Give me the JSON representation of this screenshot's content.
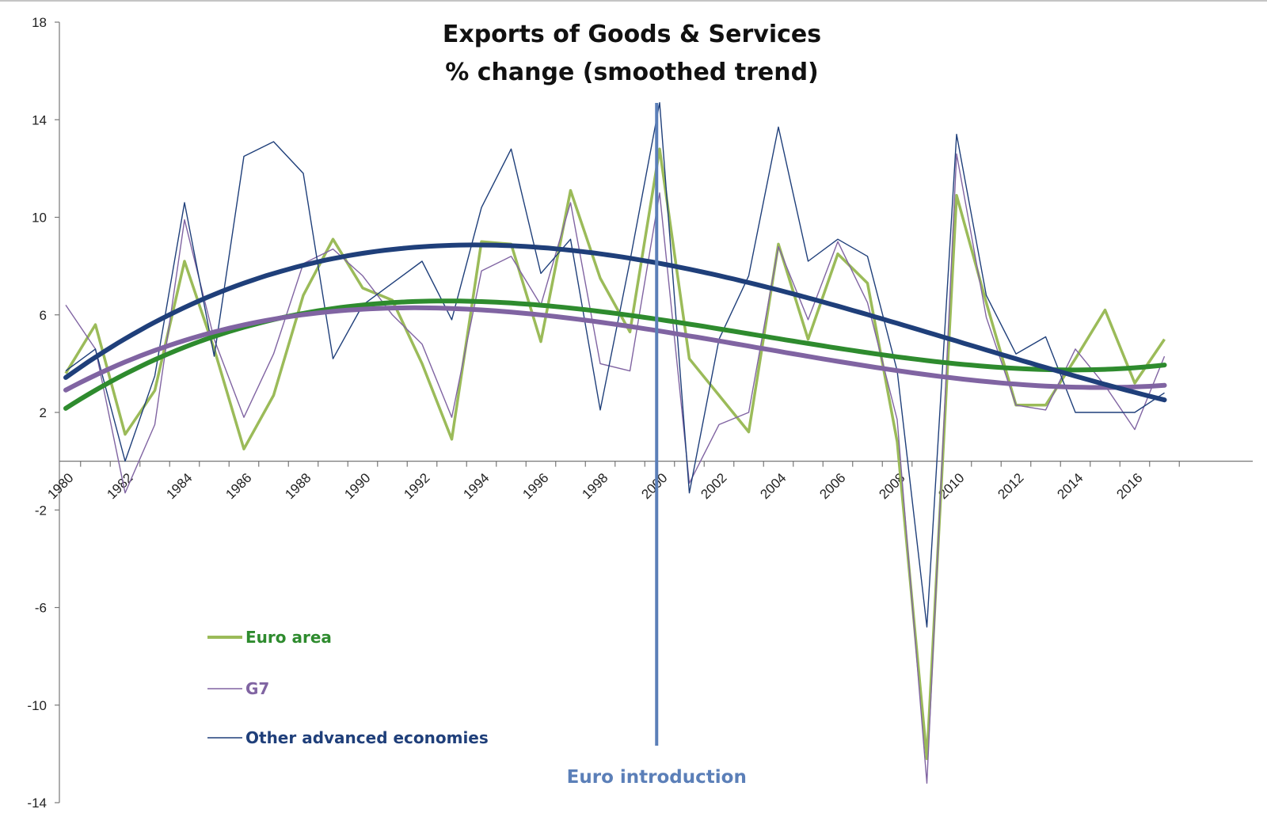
{
  "chart_data": {
    "type": "line",
    "title": "Exports of Goods & Services",
    "subtitle": "% change (smoothed trend)",
    "xlabel": "",
    "ylabel": "",
    "ylim": [
      -14,
      18
    ],
    "y_ticks": [
      "18",
      "14",
      "10",
      "6",
      "2",
      "-2",
      "-6",
      "-10",
      "-14"
    ],
    "x_tick_labels": [
      "1980",
      "1982",
      "1984",
      "1986",
      "1988",
      "1990",
      "1992",
      "1994",
      "1996",
      "1998",
      "2000",
      "2002",
      "2004",
      "2006",
      "2008",
      "2010",
      "2012",
      "2014",
      "2016"
    ],
    "x": [
      1980,
      1981,
      1982,
      1983,
      1984,
      1985,
      1986,
      1987,
      1988,
      1989,
      1990,
      1991,
      1992,
      1993,
      1994,
      1995,
      1996,
      1997,
      1998,
      1999,
      2000,
      2001,
      2002,
      2003,
      2004,
      2005,
      2006,
      2007,
      2008,
      2009,
      2010,
      2011,
      2012,
      2013,
      2014,
      2015,
      2016,
      2017
    ],
    "series": [
      {
        "name": "Euro area",
        "color": "#9bbb59",
        "trend_color": "#2e8b2e",
        "values": [
          3.6,
          5.6,
          1.1,
          2.9,
          8.2,
          4.6,
          0.5,
          2.7,
          6.8,
          9.1,
          7.1,
          6.6,
          4.0,
          0.9,
          9.0,
          8.9,
          4.9,
          11.1,
          7.5,
          5.3,
          12.8,
          4.2,
          2.7,
          1.2,
          8.9,
          5.0,
          8.5,
          7.3,
          0.8,
          -12.2,
          10.9,
          6.5,
          2.3,
          2.3,
          4.2,
          6.2,
          3.2,
          5.0
        ]
      },
      {
        "name": "G7",
        "color": "#8064a2",
        "trend_color": "#8064a2",
        "values": [
          6.4,
          4.6,
          -1.3,
          1.5,
          9.9,
          5.0,
          1.8,
          4.4,
          8.1,
          8.7,
          7.6,
          6.0,
          4.8,
          1.8,
          7.8,
          8.4,
          6.4,
          10.6,
          4.0,
          3.7,
          11.0,
          -0.9,
          1.5,
          2.0,
          8.8,
          5.8,
          9.0,
          6.5,
          1.7,
          -13.2,
          12.6,
          5.9,
          2.3,
          2.1,
          4.6,
          3.1,
          1.3,
          4.3
        ]
      },
      {
        "name": "Other advanced economies",
        "color": "#1f3f7a",
        "trend_color": "#1f3f7a",
        "values": [
          3.7,
          4.6,
          0.0,
          3.5,
          10.6,
          4.3,
          12.5,
          13.1,
          11.8,
          4.2,
          6.4,
          7.3,
          8.2,
          5.8,
          10.4,
          12.8,
          7.7,
          9.1,
          2.1,
          8.2,
          14.7,
          -1.3,
          5.0,
          7.6,
          13.7,
          8.2,
          9.1,
          8.4,
          3.7,
          -6.8,
          13.4,
          6.8,
          4.4,
          5.1,
          2.0,
          2.0,
          2.0,
          2.8
        ]
      }
    ],
    "annotations": [
      {
        "text": "Euro introduction",
        "x": 1999.9
      }
    ],
    "legend": "bottom-left"
  }
}
